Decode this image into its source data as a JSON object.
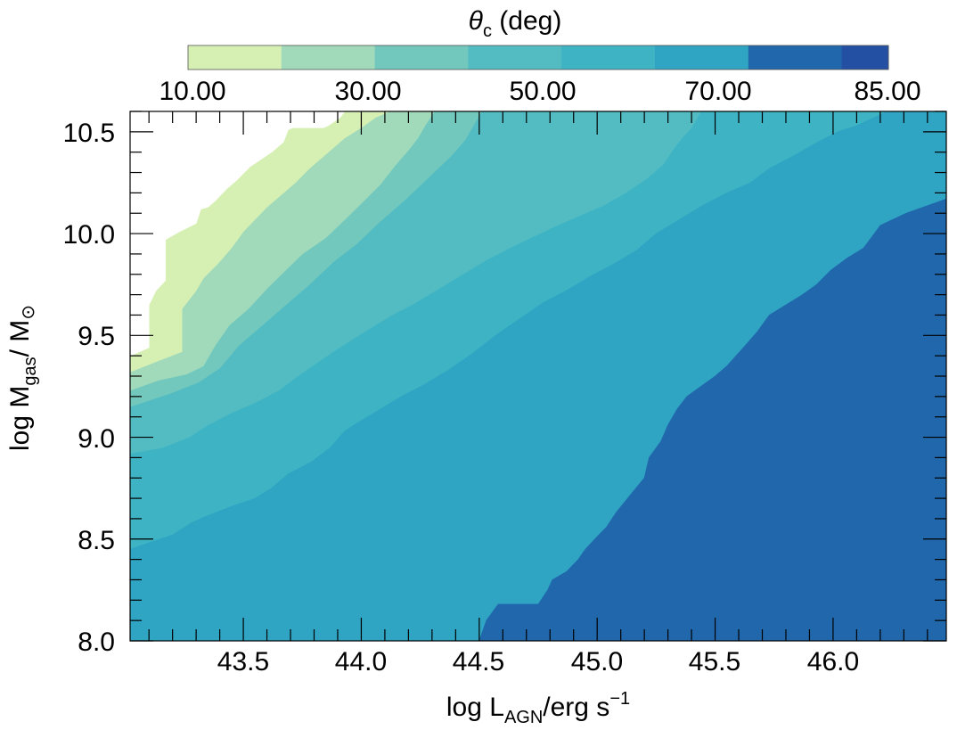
{
  "chart_data": {
    "type": "contourf",
    "colorbar": {
      "title_symbol": "θ",
      "title_subscript": "c",
      "title_rest": " (deg)",
      "tick_labels": [
        "10.00",
        "30.00",
        "50.00",
        "70.00",
        "85.00"
      ],
      "levels": [
        10,
        20,
        30,
        40,
        50,
        60,
        70,
        80,
        85
      ],
      "colors": [
        "#d6efb3",
        "#a0dabb",
        "#73c8bd",
        "#52bcc2",
        "#3eb3c4",
        "#2fa4c3",
        "#2167ac",
        "#2350a2"
      ],
      "location": "top"
    },
    "x": {
      "label_main": "log L",
      "label_sub": "AGN",
      "label_rest": "/erg s",
      "label_sup": "−1",
      "range": [
        43.02,
        46.48
      ],
      "tick_values": [
        43.5,
        44.0,
        44.5,
        45.0,
        45.5,
        46.0
      ],
      "tick_labels": [
        "43.5",
        "44.0",
        "44.5",
        "45.0",
        "45.5",
        "46.0"
      ],
      "minor_step": 0.1
    },
    "y": {
      "label_main": "log M",
      "label_sub": "gas",
      "label_rest": "/ M",
      "label_sun": "⊙",
      "range": [
        8.0,
        10.6
      ],
      "tick_values": [
        8.0,
        8.5,
        9.0,
        9.5,
        10.0,
        10.5
      ],
      "tick_labels": [
        "8.0",
        "8.5",
        "9.0",
        "9.5",
        "10.0",
        "10.5"
      ],
      "minor_step": 0.1
    },
    "boundaries": [
      {
        "level": 10,
        "points": [
          [
            43.02,
            9.4
          ],
          [
            43.06,
            9.42
          ],
          [
            43.1,
            9.44
          ],
          [
            43.1,
            9.65
          ],
          [
            43.13,
            9.72
          ],
          [
            43.17,
            9.77
          ],
          [
            43.17,
            9.97
          ],
          [
            43.23,
            10.01
          ],
          [
            43.3,
            10.05
          ],
          [
            43.32,
            10.12
          ],
          [
            43.35,
            10.13
          ],
          [
            43.38,
            10.16
          ],
          [
            43.43,
            10.22
          ],
          [
            43.47,
            10.26
          ],
          [
            43.53,
            10.33
          ],
          [
            43.62,
            10.4
          ],
          [
            43.67,
            10.45
          ],
          [
            43.69,
            10.51
          ],
          [
            43.71,
            10.52
          ],
          [
            43.84,
            10.52
          ],
          [
            43.86,
            10.53
          ],
          [
            43.91,
            10.57
          ],
          [
            43.93,
            10.6
          ]
        ]
      },
      {
        "level": 20,
        "points": [
          [
            43.02,
            9.32
          ],
          [
            43.15,
            9.38
          ],
          [
            43.24,
            9.42
          ],
          [
            43.24,
            9.63
          ],
          [
            43.3,
            9.72
          ],
          [
            43.33,
            9.78
          ],
          [
            43.39,
            9.85
          ],
          [
            43.45,
            9.93
          ],
          [
            43.5,
            10.01
          ],
          [
            43.55,
            10.07
          ],
          [
            43.6,
            10.13
          ],
          [
            43.65,
            10.18
          ],
          [
            43.72,
            10.25
          ],
          [
            43.78,
            10.32
          ],
          [
            43.84,
            10.38
          ],
          [
            43.93,
            10.47
          ],
          [
            44.0,
            10.52
          ],
          [
            44.06,
            10.57
          ],
          [
            44.12,
            10.6
          ]
        ]
      },
      {
        "level": 30,
        "points": [
          [
            43.02,
            9.23
          ],
          [
            43.14,
            9.28
          ],
          [
            43.26,
            9.31
          ],
          [
            43.33,
            9.35
          ],
          [
            43.38,
            9.45
          ],
          [
            43.44,
            9.55
          ],
          [
            43.52,
            9.63
          ],
          [
            43.6,
            9.73
          ],
          [
            43.67,
            9.81
          ],
          [
            43.75,
            9.9
          ],
          [
            43.85,
            9.98
          ],
          [
            43.94,
            10.08
          ],
          [
            44.01,
            10.16
          ],
          [
            44.08,
            10.24
          ],
          [
            44.14,
            10.33
          ],
          [
            44.2,
            10.41
          ],
          [
            44.24,
            10.47
          ],
          [
            44.27,
            10.53
          ],
          [
            44.31,
            10.6
          ]
        ]
      },
      {
        "level": 40,
        "points": [
          [
            43.02,
            9.15
          ],
          [
            43.2,
            9.22
          ],
          [
            43.31,
            9.27
          ],
          [
            43.4,
            9.34
          ],
          [
            43.48,
            9.45
          ],
          [
            43.58,
            9.55
          ],
          [
            43.68,
            9.65
          ],
          [
            43.78,
            9.75
          ],
          [
            43.88,
            9.86
          ],
          [
            43.98,
            9.95
          ],
          [
            44.08,
            10.06
          ],
          [
            44.18,
            10.16
          ],
          [
            44.28,
            10.27
          ],
          [
            44.38,
            10.38
          ],
          [
            44.44,
            10.46
          ],
          [
            44.48,
            10.54
          ],
          [
            44.51,
            10.6
          ]
        ]
      },
      {
        "level": 50,
        "points": [
          [
            43.02,
            8.92
          ],
          [
            43.16,
            8.95
          ],
          [
            43.27,
            9.0
          ],
          [
            43.35,
            9.06
          ],
          [
            43.45,
            9.12
          ],
          [
            43.55,
            9.17
          ],
          [
            43.65,
            9.23
          ],
          [
            43.73,
            9.3
          ],
          [
            43.83,
            9.38
          ],
          [
            43.92,
            9.45
          ],
          [
            44.03,
            9.53
          ],
          [
            44.13,
            9.6
          ],
          [
            44.23,
            9.66
          ],
          [
            44.33,
            9.73
          ],
          [
            44.43,
            9.8
          ],
          [
            44.53,
            9.87
          ],
          [
            44.63,
            9.93
          ],
          [
            44.72,
            9.98
          ],
          [
            44.83,
            10.04
          ],
          [
            44.93,
            10.09
          ],
          [
            45.03,
            10.14
          ],
          [
            45.12,
            10.2
          ],
          [
            45.21,
            10.27
          ],
          [
            45.28,
            10.34
          ],
          [
            45.32,
            10.41
          ],
          [
            45.36,
            10.47
          ],
          [
            45.4,
            10.52
          ],
          [
            45.44,
            10.6
          ]
        ]
      },
      {
        "level": 60,
        "points": [
          [
            43.02,
            8.45
          ],
          [
            43.12,
            8.49
          ],
          [
            43.2,
            8.52
          ],
          [
            43.28,
            8.58
          ],
          [
            43.36,
            8.62
          ],
          [
            43.45,
            8.66
          ],
          [
            43.55,
            8.7
          ],
          [
            43.62,
            8.75
          ],
          [
            43.69,
            8.82
          ],
          [
            43.79,
            8.88
          ],
          [
            43.87,
            8.95
          ],
          [
            43.93,
            9.03
          ],
          [
            43.97,
            9.06
          ],
          [
            44.07,
            9.13
          ],
          [
            44.17,
            9.2
          ],
          [
            44.27,
            9.26
          ],
          [
            44.37,
            9.33
          ],
          [
            44.47,
            9.41
          ],
          [
            44.57,
            9.5
          ],
          [
            44.67,
            9.58
          ],
          [
            44.77,
            9.66
          ],
          [
            44.87,
            9.72
          ],
          [
            44.97,
            9.79
          ],
          [
            45.07,
            9.85
          ],
          [
            45.17,
            9.92
          ],
          [
            45.25,
            10.0
          ],
          [
            45.35,
            10.07
          ],
          [
            45.45,
            10.14
          ],
          [
            45.55,
            10.2
          ],
          [
            45.65,
            10.25
          ],
          [
            45.73,
            10.32
          ],
          [
            45.83,
            10.38
          ],
          [
            45.92,
            10.44
          ],
          [
            46.02,
            10.5
          ],
          [
            46.1,
            10.53
          ],
          [
            46.23,
            10.6
          ]
        ]
      },
      {
        "level": 70,
        "points": [
          [
            44.5,
            8.0
          ],
          [
            44.53,
            8.1
          ],
          [
            44.58,
            8.18
          ],
          [
            44.75,
            8.18
          ],
          [
            44.79,
            8.25
          ],
          [
            44.81,
            8.3
          ],
          [
            44.87,
            8.34
          ],
          [
            44.92,
            8.4
          ],
          [
            44.95,
            8.45
          ],
          [
            44.99,
            8.5
          ],
          [
            45.04,
            8.56
          ],
          [
            45.08,
            8.63
          ],
          [
            45.15,
            8.73
          ],
          [
            45.2,
            8.8
          ],
          [
            45.22,
            8.9
          ],
          [
            45.27,
            8.98
          ],
          [
            45.3,
            9.06
          ],
          [
            45.34,
            9.14
          ],
          [
            45.38,
            9.2
          ],
          [
            45.44,
            9.25
          ],
          [
            45.5,
            9.3
          ],
          [
            45.55,
            9.35
          ],
          [
            45.62,
            9.44
          ],
          [
            45.68,
            9.52
          ],
          [
            45.73,
            9.6
          ],
          [
            45.8,
            9.65
          ],
          [
            45.87,
            9.7
          ],
          [
            45.93,
            9.75
          ],
          [
            45.99,
            9.82
          ],
          [
            46.06,
            9.88
          ],
          [
            46.13,
            9.93
          ],
          [
            46.2,
            10.04
          ],
          [
            46.31,
            10.1
          ],
          [
            46.48,
            10.17
          ]
        ]
      }
    ]
  }
}
